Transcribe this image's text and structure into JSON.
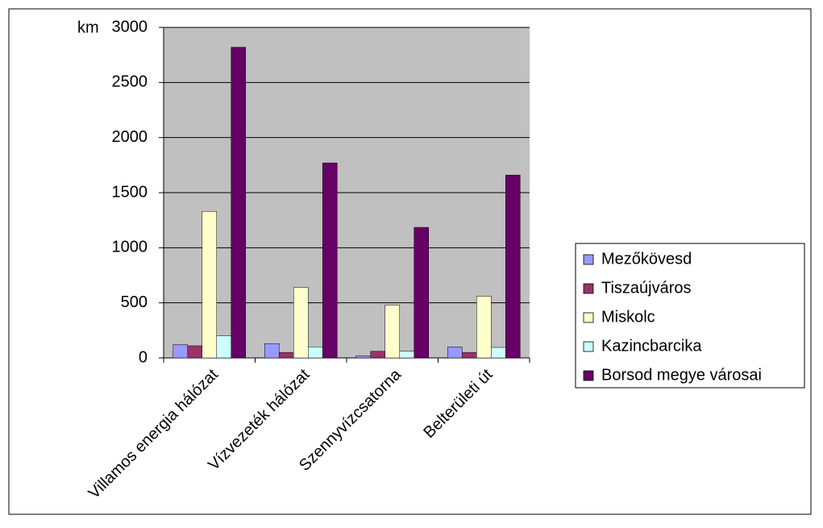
{
  "chart_data": {
    "type": "bar",
    "y_label": "km",
    "categories": [
      "Villamos energia hálózat",
      "Vízvezeték hálózat",
      "Szennyvízcsatorna",
      "Belterületi út"
    ],
    "series": [
      {
        "name": "Mezőkövesd",
        "color": "#9999ff",
        "values": [
          120,
          130,
          20,
          100
        ]
      },
      {
        "name": "Tiszaújváros",
        "color": "#993366",
        "values": [
          110,
          50,
          60,
          50
        ]
      },
      {
        "name": "Miskolc",
        "color": "#ffffcc",
        "values": [
          1330,
          640,
          480,
          560
        ]
      },
      {
        "name": "Kazincbarcika",
        "color": "#ccffff",
        "values": [
          200,
          100,
          60,
          95
        ]
      },
      {
        "name": "Borsod megye városai",
        "color": "#660066",
        "values": [
          2820,
          1770,
          1185,
          1660
        ]
      }
    ],
    "ylim": [
      0,
      3000
    ],
    "yticks": [
      0,
      500,
      1000,
      1500,
      2000,
      2500,
      3000
    ],
    "grid": true,
    "legend": "right"
  }
}
